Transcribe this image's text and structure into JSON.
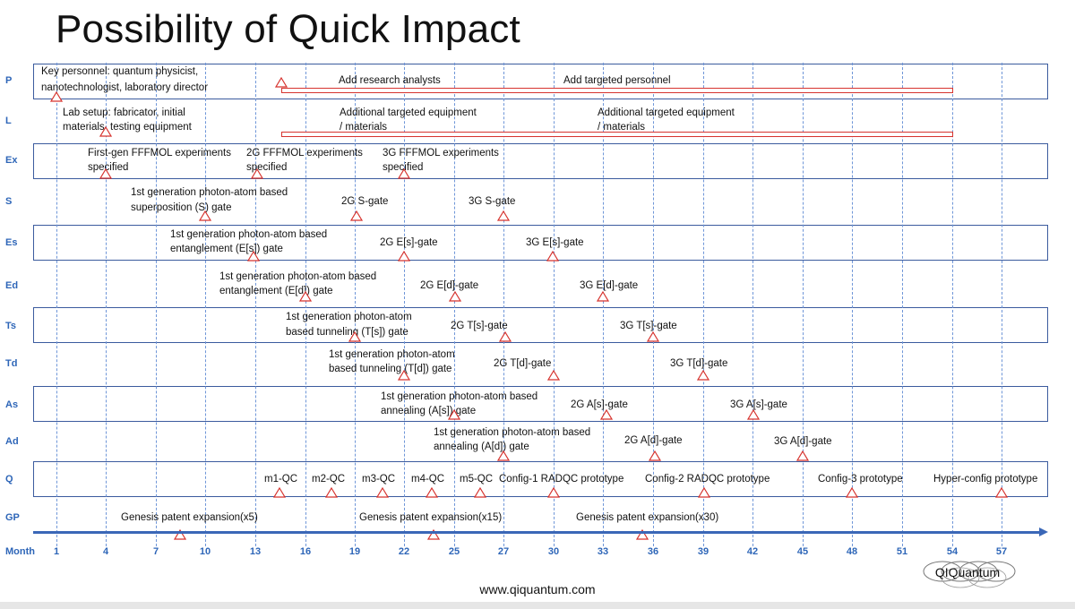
{
  "title": "Possibility of Quick Impact",
  "footer": "www.qiquantum.com",
  "logo": "QIQuantum",
  "month_label": "Month",
  "months": [
    "1",
    "4",
    "7",
    "10",
    "13",
    "16",
    "19",
    "22",
    "25",
    "27",
    "30",
    "33",
    "36",
    "39",
    "42",
    "45",
    "48",
    "51",
    "54",
    "57"
  ],
  "rows": [
    {
      "label": "P"
    },
    {
      "label": "L"
    },
    {
      "label": "Ex"
    },
    {
      "label": "S"
    },
    {
      "label": "Es"
    },
    {
      "label": "Ed"
    },
    {
      "label": "Ts"
    },
    {
      "label": "Td"
    },
    {
      "label": "As"
    },
    {
      "label": "Ad"
    },
    {
      "label": "Q"
    },
    {
      "label": "GP"
    }
  ],
  "texts": {
    "p1a": "Key personnel:  quantum physicist,",
    "p1b": "nanotechnologist, laboratory director",
    "p2": "Add research analysts",
    "p3": "Add targeted personnel",
    "l1a": "Lab setup:  fabricator, initial",
    "l1b": "materials, testing equipment",
    "l2a": "Additional targeted equipment",
    "l2b": "/ materials",
    "l3a": "Additional targeted equipment",
    "l3b": "/ materials",
    "ex1a": "First-gen FFFMOL experiments",
    "ex1b": "specified",
    "ex2a": "2G FFFMOL experiments",
    "ex2b": "specified",
    "ex3a": "3G FFFMOL experiments",
    "ex3b": "specified",
    "s1a": "1st generation photon-atom based",
    "s1b": "superposition (S) gate",
    "s2": "2G S-gate",
    "s3": "3G S-gate",
    "es1a": "1st generation photon-atom based",
    "es1b": "entanglement (E[s]) gate",
    "es2": "2G E[s]-gate",
    "es3": "3G E[s]-gate",
    "ed1a": "1st generation photon-atom based",
    "ed1b": "entanglement (E[d]) gate",
    "ed2": "2G E[d]-gate",
    "ed3": "3G E[d]-gate",
    "ts1a": "1st generation photon-atom",
    "ts1b": "based tunneling (T[s]) gate",
    "ts2": "2G T[s]-gate",
    "ts3": "3G T[s]-gate",
    "td1a": "1st generation photon-atom",
    "td1b": "based tunneling (T[d]) gate",
    "td2": "2G T[d]-gate",
    "td3": "3G T[d]-gate",
    "as1a": "1st generation photon-atom based",
    "as1b": "annealing (A[s]) gate",
    "as2": "2G A[s]-gate",
    "as3": "3G A[s]-gate",
    "ad1a": "1st generation photon-atom based",
    "ad1b": "annealing (A[d]) gate",
    "ad2": "2G A[d]-gate",
    "ad3": "3G A[d]-gate",
    "q1": "m1-QC",
    "q2": "m2-QC",
    "q3": "m3-QC",
    "q4": "m4-QC",
    "q5": "m5-QC",
    "q6": "Config-1 RADQC prototype",
    "q7": "Config-2 RADQC prototype",
    "q8": "Config-3 prototype",
    "q9": "Hyper-config prototype",
    "gp1": "Genesis patent expansion(x5)",
    "gp2": "Genesis patent expansion(x15)",
    "gp3": "Genesis patent expansion(x30)"
  },
  "colors": {
    "band_border": "#3b5b9e",
    "axis": "#3a67b7",
    "marker": "#d6332e",
    "label": "#2e66b8"
  }
}
